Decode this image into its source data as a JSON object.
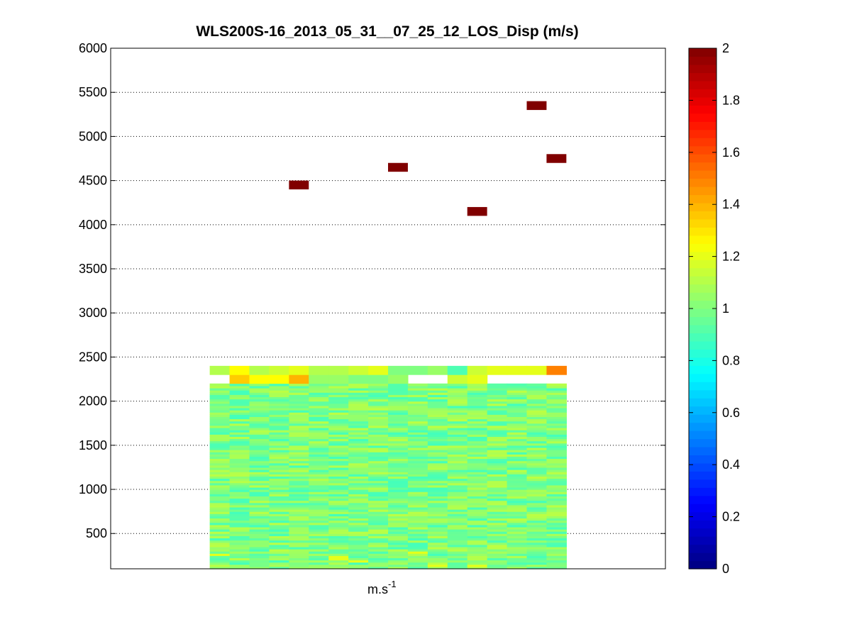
{
  "chart_data": {
    "type": "heatmap",
    "title": "WLS200S-16_2013_05_31__07_25_12_LOS_Disp (m/s)",
    "xlabel_base": "m.s",
    "xlabel_exp": "-1",
    "ylabel": "",
    "ylim": [
      100,
      6000
    ],
    "yticks": [
      500,
      1000,
      1500,
      2000,
      2500,
      3000,
      3500,
      4000,
      4500,
      5000,
      5500,
      6000
    ],
    "ygrid": "dotted",
    "columns": 18,
    "visible_columns": [
      5,
      22
    ],
    "colorbar": {
      "colormap": "jet",
      "min": 0,
      "max": 2,
      "ticks": [
        0,
        0.2,
        0.4,
        0.6,
        0.8,
        1,
        1.2,
        1.4,
        1.6,
        1.8,
        2
      ],
      "position": "right"
    },
    "bulk_field": {
      "altitude_range": [
        100,
        2200
      ],
      "row_height": 25,
      "typical_value_range": [
        0.88,
        1.12
      ]
    },
    "upper_rows": [
      {
        "altitude": 2250,
        "values": [
          null,
          1.35,
          1.25,
          1.25,
          1.4,
          1.05,
          1.05,
          1.0,
          1.0,
          1.05,
          null,
          null,
          1.15,
          1.2,
          null,
          null,
          null,
          null
        ]
      },
      {
        "altitude": 2350,
        "values": [
          1.1,
          1.25,
          1.1,
          1.15,
          1.2,
          1.1,
          1.1,
          1.15,
          1.2,
          1.0,
          1.0,
          1.05,
          0.9,
          1.15,
          1.2,
          1.2,
          1.2,
          1.5
        ]
      }
    ],
    "isolated_cells": [
      {
        "column": 9,
        "altitude": 4450,
        "value": 2.0
      },
      {
        "column": 14,
        "altitude": 4650,
        "value": 2.0
      },
      {
        "column": 18,
        "altitude": 4150,
        "value": 2.0
      },
      {
        "column": 21,
        "altitude": 5350,
        "value": 2.0
      },
      {
        "column": 22,
        "altitude": 4750,
        "value": 2.0
      }
    ]
  }
}
